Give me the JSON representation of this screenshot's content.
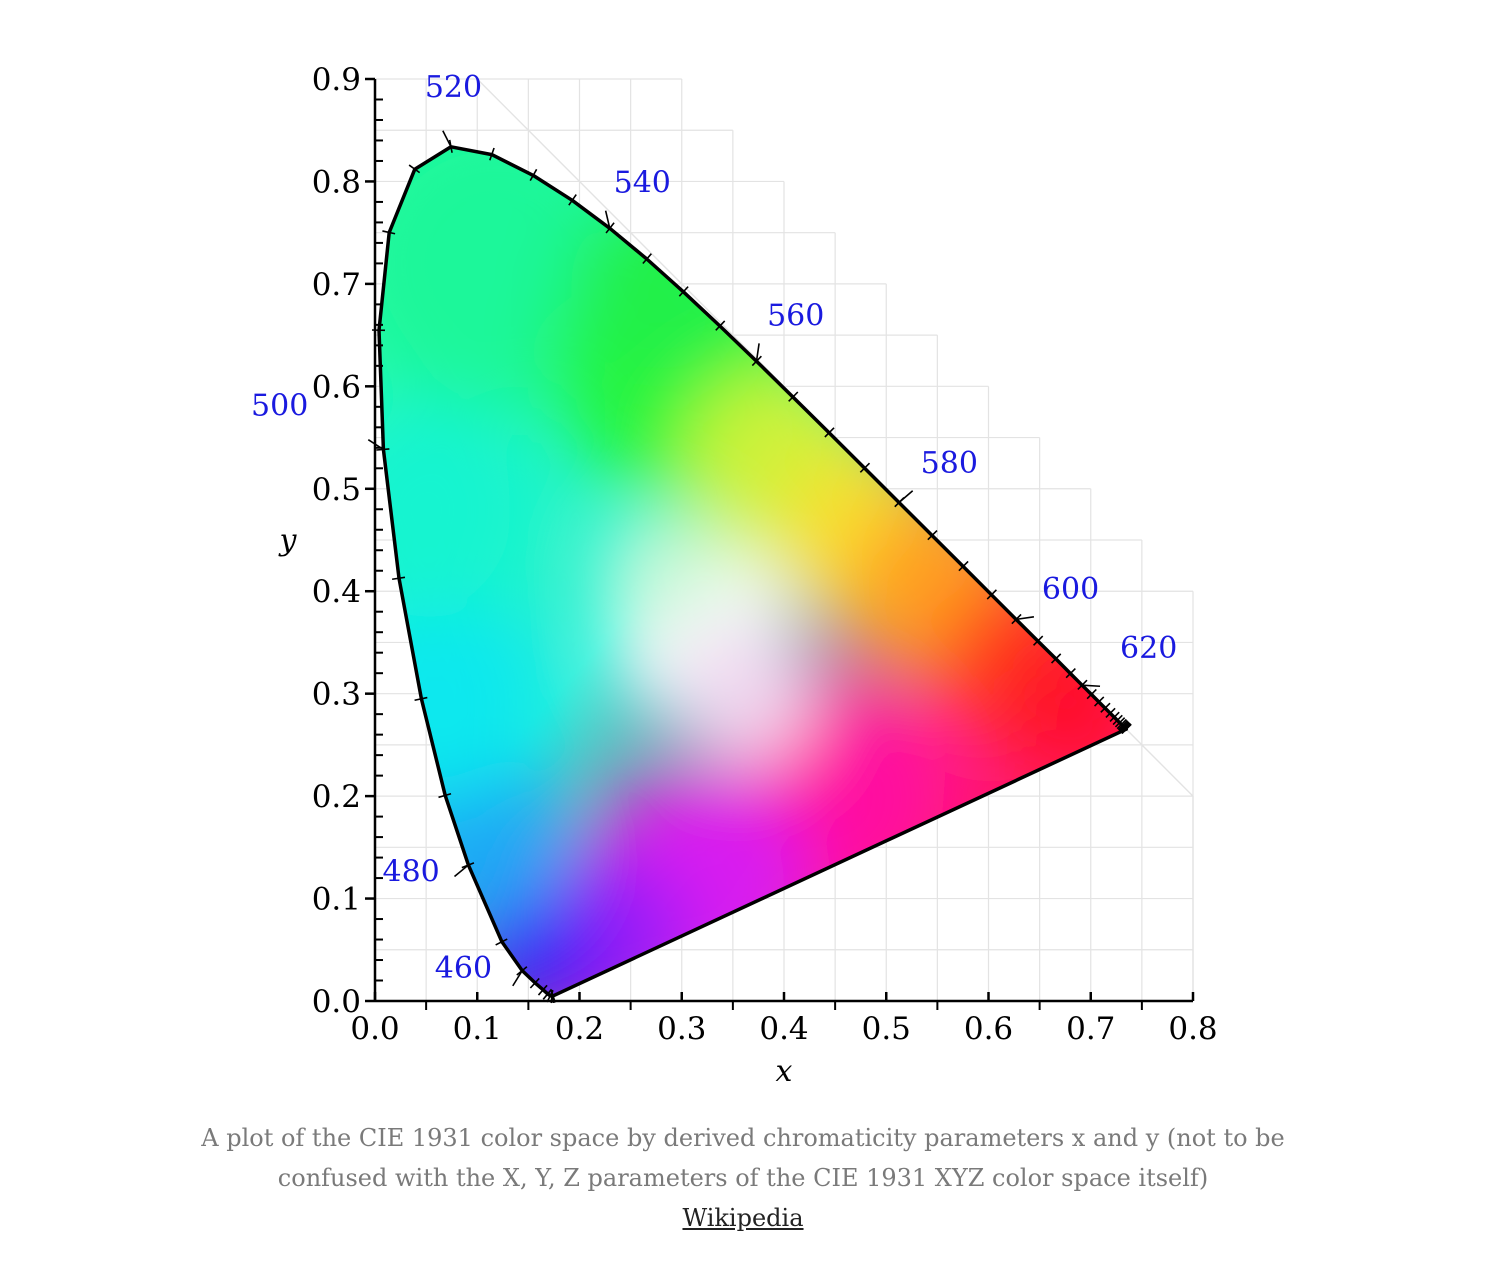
{
  "chart_data": {
    "type": "scatter",
    "xlabel": "x",
    "ylabel": "y",
    "xlim": [
      0.0,
      0.8
    ],
    "ylim": [
      0.0,
      0.9
    ],
    "x_ticks": [
      "0.0",
      "0.1",
      "0.2",
      "0.3",
      "0.4",
      "0.5",
      "0.6",
      "0.7",
      "0.8"
    ],
    "y_ticks": [
      "0.0",
      "0.1",
      "0.2",
      "0.3",
      "0.4",
      "0.5",
      "0.6",
      "0.7",
      "0.8",
      "0.9"
    ],
    "grid": true,
    "spectral_locus": [
      [
        0.1741,
        0.005
      ],
      [
        0.1738,
        0.0049
      ],
      [
        0.1736,
        0.0049
      ],
      [
        0.173,
        0.0048
      ],
      [
        0.1714,
        0.0051
      ],
      [
        0.1689,
        0.0069
      ],
      [
        0.1644,
        0.0109
      ],
      [
        0.1566,
        0.0177
      ],
      [
        0.144,
        0.0297
      ],
      [
        0.1241,
        0.0578
      ],
      [
        0.0913,
        0.1327
      ],
      [
        0.0687,
        0.2007
      ],
      [
        0.0454,
        0.295
      ],
      [
        0.0235,
        0.4127
      ],
      [
        0.0082,
        0.5384
      ],
      [
        0.0039,
        0.6548
      ],
      [
        0.0139,
        0.7502
      ],
      [
        0.0389,
        0.812
      ],
      [
        0.0743,
        0.8338
      ],
      [
        0.1142,
        0.8262
      ],
      [
        0.1547,
        0.8059
      ],
      [
        0.1929,
        0.7816
      ],
      [
        0.2296,
        0.7543
      ],
      [
        0.2658,
        0.7243
      ],
      [
        0.3016,
        0.6923
      ],
      [
        0.3373,
        0.6589
      ],
      [
        0.3731,
        0.6245
      ],
      [
        0.4087,
        0.5896
      ],
      [
        0.4441,
        0.5547
      ],
      [
        0.4788,
        0.5202
      ],
      [
        0.5125,
        0.4866
      ],
      [
        0.5448,
        0.4544
      ],
      [
        0.5752,
        0.4242
      ],
      [
        0.6029,
        0.3965
      ],
      [
        0.627,
        0.3725
      ],
      [
        0.6482,
        0.3514
      ],
      [
        0.6658,
        0.334
      ],
      [
        0.6801,
        0.3197
      ],
      [
        0.6915,
        0.3083
      ],
      [
        0.7006,
        0.2993
      ],
      [
        0.7079,
        0.292
      ],
      [
        0.714,
        0.2859
      ],
      [
        0.719,
        0.2809
      ],
      [
        0.723,
        0.277
      ],
      [
        0.726,
        0.274
      ],
      [
        0.7283,
        0.2717
      ],
      [
        0.73,
        0.27
      ],
      [
        0.7311,
        0.2689
      ],
      [
        0.732,
        0.268
      ],
      [
        0.7327,
        0.2673
      ],
      [
        0.7334,
        0.2666
      ],
      [
        0.734,
        0.266
      ],
      [
        0.7344,
        0.2656
      ],
      [
        0.7346,
        0.2654
      ],
      [
        0.7347,
        0.2653
      ]
    ],
    "wavelength_labels": [
      {
        "label": "460",
        "x": 0.144,
        "y": 0.0297
      },
      {
        "label": "480",
        "x": 0.0913,
        "y": 0.1327
      },
      {
        "label": "500",
        "x": 0.0082,
        "y": 0.5384
      },
      {
        "label": "520",
        "x": 0.0743,
        "y": 0.8338
      },
      {
        "label": "540",
        "x": 0.2296,
        "y": 0.7543
      },
      {
        "label": "560",
        "x": 0.3731,
        "y": 0.6245
      },
      {
        "label": "580",
        "x": 0.5125,
        "y": 0.4866
      },
      {
        "label": "600",
        "x": 0.627,
        "y": 0.3725
      },
      {
        "label": "620",
        "x": 0.6915,
        "y": 0.3083
      }
    ]
  },
  "caption": {
    "text": "A plot of the CIE 1931 color space by derived chromaticity parameters x and y (not to be confused with the X, Y, Z parameters of the CIE 1931 XYZ color space itself)",
    "source_label": "Wikipedia"
  }
}
